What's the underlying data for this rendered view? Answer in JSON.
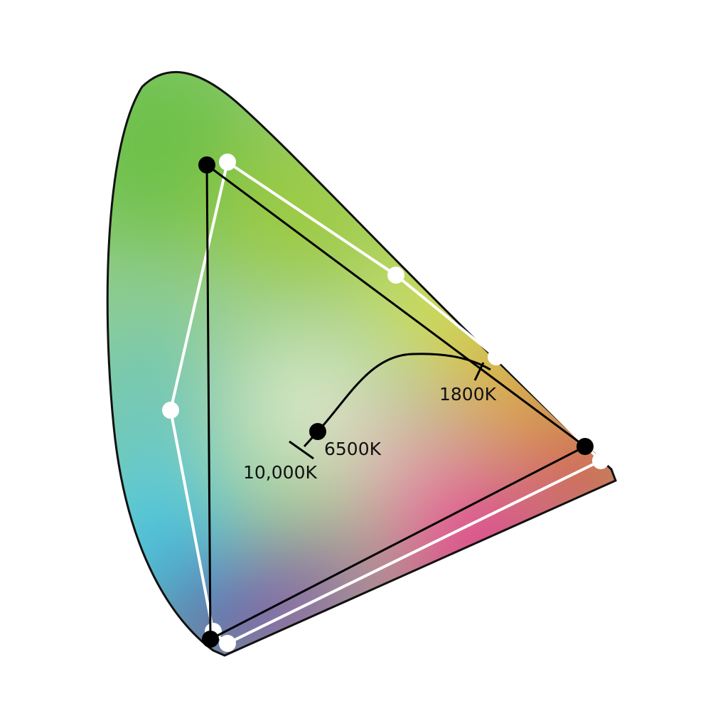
{
  "diagram": {
    "labels": {
      "white_point": "6500K",
      "cool_end": "10,000K",
      "warm_end": "1800K"
    },
    "colors": {
      "outline": "#111111",
      "gamut_black": "#000000",
      "gamut_white": "#ffffff",
      "green": "#6cc04a",
      "cyan": "#3ec8ef",
      "blue": "#4a4fa8",
      "magenta": "#e8288a",
      "red": "#e8262e",
      "orange": "#f7941d",
      "yellow": "#f2e92a"
    }
  }
}
